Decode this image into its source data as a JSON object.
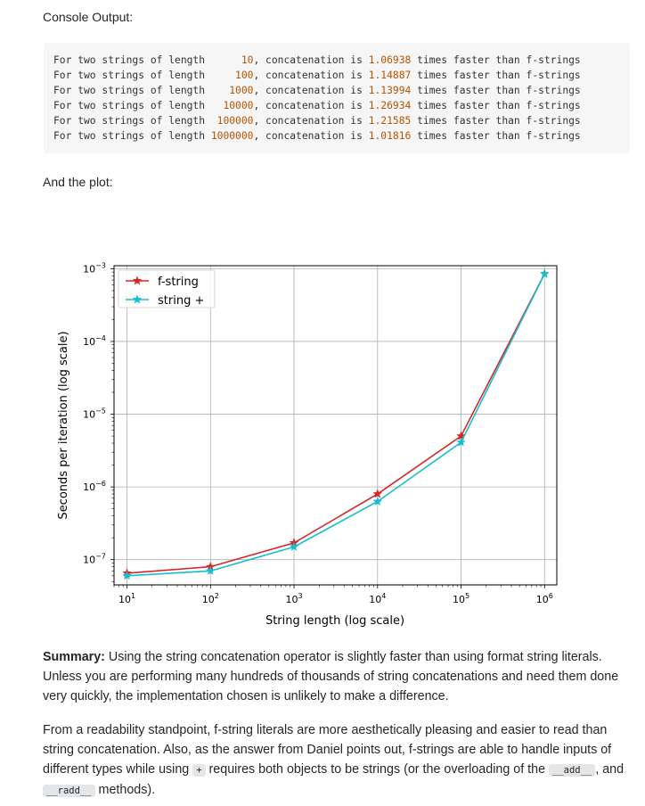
{
  "console_title": "Console Output:",
  "console_lines": [
    {
      "prefix": "For two strings of length ",
      "length": "     10",
      "mid": ", concatenation is ",
      "ratio": "1.06938",
      "suffix": " times faster than f-strings"
    },
    {
      "prefix": "For two strings of length ",
      "length": "    100",
      "mid": ", concatenation is ",
      "ratio": "1.14887",
      "suffix": " times faster than f-strings"
    },
    {
      "prefix": "For two strings of length ",
      "length": "   1000",
      "mid": ", concatenation is ",
      "ratio": "1.13994",
      "suffix": " times faster than f-strings"
    },
    {
      "prefix": "For two strings of length ",
      "length": "  10000",
      "mid": ", concatenation is ",
      "ratio": "1.26934",
      "suffix": " times faster than f-strings"
    },
    {
      "prefix": "For two strings of length ",
      "length": " 100000",
      "mid": ", concatenation is ",
      "ratio": "1.21585",
      "suffix": " times faster than f-strings"
    },
    {
      "prefix": "For two strings of length ",
      "length": "1000000",
      "mid": ", concatenation is ",
      "ratio": "1.01816",
      "suffix": " times faster than f-strings"
    }
  ],
  "plot_intro": "And the plot:",
  "summary": {
    "lead": "Summary:",
    "text": " Using the string concatenation operator is slightly faster than using format string literals. Unless you are performing many hundreds of thousands of string concatenations and need them done very quickly, the implementation chosen is unlikely to make a difference."
  },
  "readability": {
    "part1": "From a readability standpoint, f-string literals are more aesthetically pleasing and easier to read than string concatenation. Also, as the answer from Daniel points out, f-strings are able to handle inputs of different types while using ",
    "code_plus": "+",
    "part2": " requires both objects to be strings (or the overloading of the ",
    "code_add": "__add__",
    "part3": ", and ",
    "code_radd": "__radd__",
    "part4": " methods)."
  },
  "chart_data": {
    "type": "line",
    "xlabel": "String length (log scale)",
    "ylabel": "Seconds per iteration (log scale)",
    "x_scale": "log",
    "y_scale": "log",
    "x": [
      10,
      100,
      1000,
      10000,
      100000,
      1000000
    ],
    "xlim": [
      7,
      1400000
    ],
    "ylim": [
      4.5e-08,
      0.0011
    ],
    "x_ticks": [
      {
        "value": 10,
        "base": "10",
        "exp": "1"
      },
      {
        "value": 100,
        "base": "10",
        "exp": "2"
      },
      {
        "value": 1000,
        "base": "10",
        "exp": "3"
      },
      {
        "value": 10000,
        "base": "10",
        "exp": "4"
      },
      {
        "value": 100000,
        "base": "10",
        "exp": "5"
      },
      {
        "value": 1000000,
        "base": "10",
        "exp": "6"
      }
    ],
    "y_ticks": [
      {
        "value": 1e-07,
        "base": "10",
        "exp": "−7"
      },
      {
        "value": 1e-06,
        "base": "10",
        "exp": "−6"
      },
      {
        "value": 1e-05,
        "base": "10",
        "exp": "−5"
      },
      {
        "value": 0.0001,
        "base": "10",
        "exp": "−4"
      },
      {
        "value": 0.001,
        "base": "10",
        "exp": "−3"
      }
    ],
    "grid": true,
    "legend_position": "top-left",
    "marker": "star",
    "series": [
      {
        "name": "f-string",
        "color": "#d62728",
        "values": [
          6.5e-08,
          8e-08,
          1.7e-07,
          8e-07,
          5e-06,
          0.00085
        ]
      },
      {
        "name": "string +",
        "color": "#17becf",
        "values": [
          6e-08,
          7e-08,
          1.5e-07,
          6.3e-07,
          4.1e-06,
          0.00085
        ]
      }
    ]
  }
}
